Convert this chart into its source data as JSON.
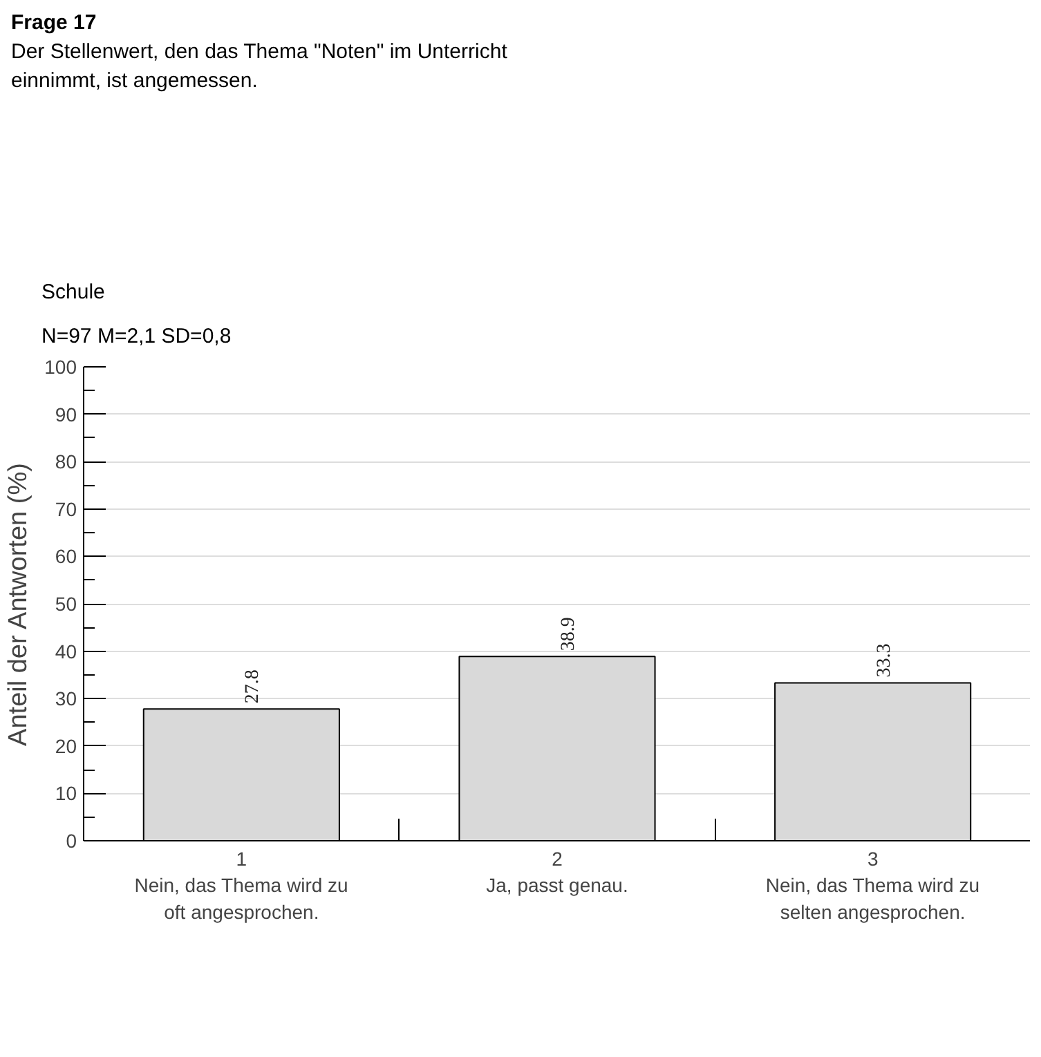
{
  "chart_data": {
    "type": "bar",
    "title": "Frage 17",
    "subtitle": "Der Stellenwert, den das Thema \"Noten\" im Unterricht\neinnimmt, ist angemessen.",
    "annotations": [
      "Schule",
      "N=97 M=2,1 SD=0,8"
    ],
    "ylabel": "Anteil der Antworten (%)",
    "categories": [
      "1\nNein, das Thema wird zu\noft angesprochen.",
      "2\nJa, passt genau.",
      "3\nNein, das Thema wird zu\nselten angesprochen."
    ],
    "values": [
      27.8,
      38.9,
      33.3
    ],
    "color": "#d9d9d9",
    "ylim": [
      0,
      100
    ],
    "yticks": [
      0,
      10,
      20,
      30,
      40,
      50,
      60,
      70,
      80,
      90,
      100
    ],
    "grid": "y",
    "data_labels": true
  }
}
